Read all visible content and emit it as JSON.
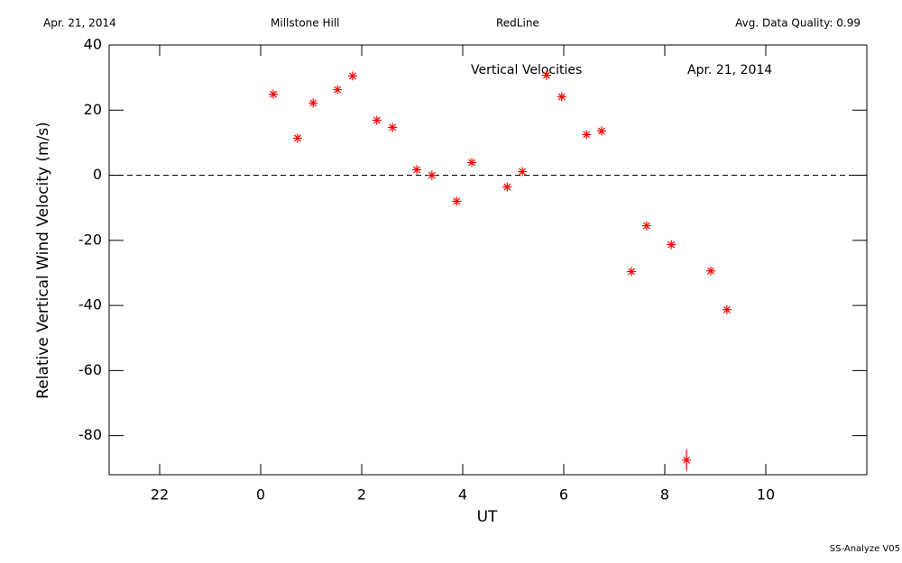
{
  "header": {
    "date": "Apr. 21, 2014",
    "site": "Millstone Hill",
    "filter": "RedLine",
    "quality": "Avg. Data Quality: 0.99"
  },
  "footer": "SS-Analyze V05",
  "chart_data": {
    "type": "scatter",
    "annotations": [
      "Vertical Velocities",
      "Apr. 21, 2014"
    ],
    "x_label": "UT",
    "y_label": "Relative Vertical Wind Velocity (m/s)",
    "xlim": [
      -3,
      12
    ],
    "ylim": [
      -92,
      40
    ],
    "xticks": [
      {
        "value": -2,
        "label": "22"
      },
      0,
      2,
      4,
      6,
      8,
      10
    ],
    "yticks": [
      -80,
      -60,
      -40,
      -20,
      0,
      20,
      40
    ],
    "hline": 0,
    "series": [
      {
        "color": "#ff0000",
        "x": [
          0.25,
          0.73,
          1.04,
          1.52,
          1.82,
          2.3,
          2.61,
          3.09,
          3.39,
          3.88,
          4.18,
          4.88,
          5.18,
          5.66,
          5.96,
          6.45,
          6.75,
          7.34,
          7.64,
          8.13,
          8.43,
          8.91,
          9.23
        ],
        "values": [
          24.9,
          11.4,
          22.2,
          26.3,
          30.5,
          16.9,
          14.7,
          1.7,
          0,
          -8.0,
          3.9,
          -3.6,
          1.1,
          30.7,
          24.1,
          12.5,
          13.6,
          -29.6,
          -15.5,
          -21.3,
          -87.5,
          -29.4,
          -41.3
        ],
        "errors": [
          null,
          null,
          null,
          null,
          null,
          null,
          null,
          null,
          null,
          null,
          null,
          null,
          null,
          null,
          null,
          null,
          null,
          null,
          null,
          null,
          3.3,
          null,
          null
        ]
      }
    ]
  }
}
